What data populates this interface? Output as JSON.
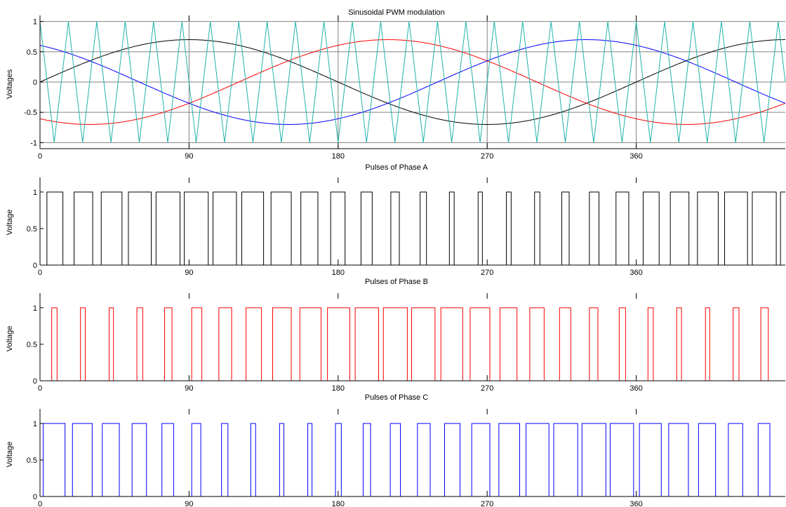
{
  "figure": {
    "background": "#ffffff",
    "grid_color": "#808080",
    "axis_color": "#000000"
  },
  "chart_data": [
    {
      "type": "line",
      "title": "Sinusoidal PWM modulation",
      "xlabel": "",
      "ylabel": "Voltages",
      "xlim": [
        0,
        450
      ],
      "ylim": [
        -1.1,
        1.1
      ],
      "xticks": [
        0,
        90,
        180,
        270,
        360
      ],
      "yticks": [
        -1,
        -0.5,
        0,
        0.5,
        1
      ],
      "ytick_labels": [
        "-1",
        "-0.5",
        "0",
        "0.5",
        "1"
      ],
      "grid": true,
      "modulation_amplitude": 0.7,
      "reference_period_deg": 360,
      "carrier": {
        "type": "triangle",
        "amplitude": 1,
        "cycles_per_reference_period": 21
      },
      "series": [
        {
          "role": "reference-a",
          "color": "#000000",
          "phase_shift_deg": 0
        },
        {
          "role": "reference-b",
          "color": "#ff0000",
          "phase_shift_deg": -120
        },
        {
          "role": "reference-c",
          "color": "#0000ff",
          "phase_shift_deg": 120
        },
        {
          "role": "carrier",
          "color": "#20b2aa"
        }
      ]
    },
    {
      "type": "line",
      "step": true,
      "title": "Pulses of Phase A",
      "xlabel": "",
      "ylabel": "Voltage",
      "xlim": [
        0,
        450
      ],
      "ylim": [
        0,
        1.2
      ],
      "xticks": [
        0,
        90,
        180,
        270,
        360
      ],
      "yticks": [
        0,
        0.5,
        1
      ],
      "ytick_labels": [
        "0",
        "0.5",
        "1"
      ],
      "grid": false,
      "series": [
        {
          "role": "pulses-a",
          "color": "#000000",
          "phase_shift_deg": 0,
          "high": 1,
          "low": 0
        }
      ]
    },
    {
      "type": "line",
      "step": true,
      "title": "Pulses of Phase B",
      "xlabel": "",
      "ylabel": "Voltage",
      "xlim": [
        0,
        450
      ],
      "ylim": [
        0,
        1.2
      ],
      "xticks": [
        0,
        90,
        180,
        270,
        360
      ],
      "yticks": [
        0,
        0.5,
        1
      ],
      "ytick_labels": [
        "0",
        "0.5",
        "1"
      ],
      "grid": false,
      "series": [
        {
          "role": "pulses-b",
          "color": "#ff0000",
          "phase_shift_deg": -120,
          "high": 1,
          "low": 0
        }
      ]
    },
    {
      "type": "line",
      "step": true,
      "title": "Pulses of Phase C",
      "xlabel": "",
      "ylabel": "Voltage",
      "xlim": [
        0,
        450
      ],
      "ylim": [
        0,
        1.2
      ],
      "xticks": [
        0,
        90,
        180,
        270,
        360
      ],
      "yticks": [
        0,
        0.5,
        1
      ],
      "ytick_labels": [
        "0",
        "0.5",
        "1"
      ],
      "grid": false,
      "series": [
        {
          "role": "pulses-c",
          "color": "#0000ff",
          "phase_shift_deg": 120,
          "high": 1,
          "low": 0
        }
      ]
    }
  ]
}
